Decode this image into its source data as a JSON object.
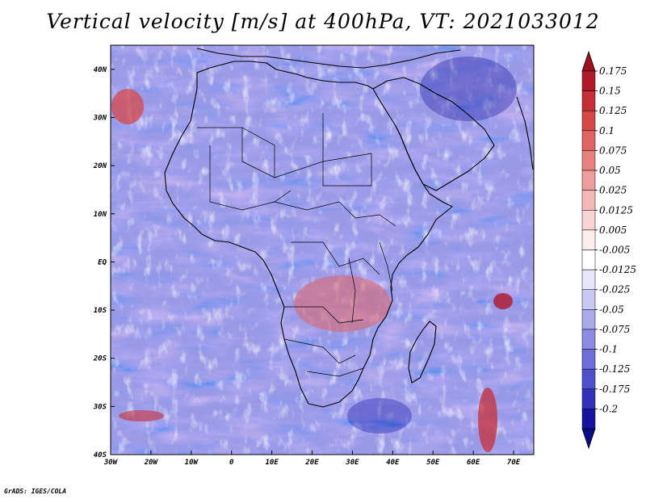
{
  "title": "Vertical velocity [m/s] at 400hPa, VT: 2021033012",
  "footer": "GrADS: IGES/COLA",
  "map": {
    "region": "Africa",
    "lon_range": [
      -30,
      75
    ],
    "lat_range": [
      -40,
      45
    ],
    "x_ticks": [
      "30W",
      "20W",
      "10W",
      "0",
      "10E",
      "20E",
      "30E",
      "40E",
      "50E",
      "60E",
      "70E"
    ],
    "x_tick_values": [
      -30,
      -20,
      -10,
      0,
      10,
      20,
      30,
      40,
      50,
      60,
      70
    ],
    "y_ticks": [
      "40N",
      "30N",
      "20N",
      "10N",
      "EQ",
      "10S",
      "20S",
      "30S",
      "40S"
    ],
    "y_tick_values": [
      40,
      30,
      20,
      10,
      0,
      -10,
      -20,
      -30,
      -40
    ]
  },
  "colorbar": {
    "labels": [
      "0.175",
      "0.15",
      "0.125",
      "0.1",
      "0.075",
      "0.05",
      "0.025",
      "0.0125",
      "0.005",
      "-0.005",
      "-0.0125",
      "-0.025",
      "-0.05",
      "-0.075",
      "-0.1",
      "-0.125",
      "-0.175",
      "-0.2"
    ],
    "colors": [
      "#b2182b",
      "#c62f38",
      "#d64848",
      "#e06464",
      "#e98080",
      "#ef9c9c",
      "#f5b8b8",
      "#f9d4d4",
      "#fdeeee",
      "#ffffff",
      "#e6e6fb",
      "#c8c8f3",
      "#aaaaeb",
      "#8c8ce3",
      "#6e6edb",
      "#5050cc",
      "#3232b8",
      "#1414a0"
    ],
    "top_color": "#9e1020",
    "bottom_color": "#0b0b8a"
  }
}
